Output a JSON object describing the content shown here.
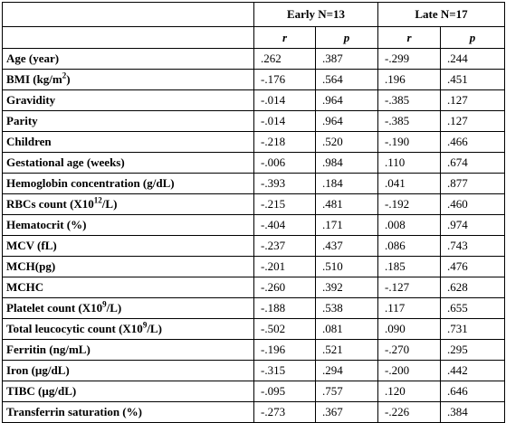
{
  "table": {
    "groups": [
      "Early N=13",
      "Late N=17"
    ],
    "stat_headers": [
      "r",
      "p",
      "r",
      "p"
    ],
    "rows": [
      {
        "label": "Age (year)",
        "values": [
          ".262",
          ".387",
          "-.299",
          ".244"
        ]
      },
      {
        "label_pre": "BMI (kg/m",
        "label_sup": "2",
        "label_post": ")",
        "values": [
          "-.176",
          ".564",
          ".196",
          ".451"
        ]
      },
      {
        "label": "Gravidity",
        "values": [
          "-.014",
          ".964",
          "-.385",
          ".127"
        ]
      },
      {
        "label": "Parity",
        "values": [
          "-.014",
          ".964",
          "-.385",
          ".127"
        ]
      },
      {
        "label": "Children",
        "values": [
          "-.218",
          ".520",
          "-.190",
          ".466"
        ]
      },
      {
        "label": "Gestational age (weeks)",
        "values": [
          "-.006",
          ".984",
          ".110",
          ".674"
        ]
      },
      {
        "label": "Hemoglobin concentration (g/dL)",
        "values": [
          "-.393",
          ".184",
          ".041",
          ".877"
        ]
      },
      {
        "label_pre": "RBCs count (X10",
        "label_sup": "12",
        "label_post": "/L)",
        "values": [
          "-.215",
          ".481",
          "-.192",
          ".460"
        ]
      },
      {
        "label": "Hematocrit (%)",
        "values": [
          "-.404",
          ".171",
          ".008",
          ".974"
        ]
      },
      {
        "label": "MCV (fL)",
        "values": [
          "-.237",
          ".437",
          ".086",
          ".743"
        ]
      },
      {
        "label": "MCH(pg)",
        "values": [
          "-.201",
          ".510",
          ".185",
          ".476"
        ]
      },
      {
        "label": "MCHC",
        "values": [
          "-.260",
          ".392",
          "-.127",
          ".628"
        ]
      },
      {
        "label_pre": "Platelet count (X10",
        "label_sup": "9",
        "label_post": "/L)",
        "values": [
          "-.188",
          ".538",
          ".117",
          ".655"
        ]
      },
      {
        "label_pre": "Total leucocytic count (X10",
        "label_sup": "9",
        "label_post": "/L)",
        "values": [
          "-.502",
          ".081",
          ".090",
          ".731"
        ]
      },
      {
        "label": "Ferritin (ng/mL)",
        "values": [
          "-.196",
          ".521",
          "-.270",
          ".295"
        ]
      },
      {
        "label": "Iron (µg/dL)",
        "values": [
          "-.315",
          ".294",
          "-.200",
          ".442"
        ]
      },
      {
        "label": "TIBC (µg/dL)",
        "values": [
          "-.095",
          ".757",
          ".120",
          ".646"
        ]
      },
      {
        "label": "Transferrin saturation (%)",
        "values": [
          "-.273",
          ".367",
          "-.226",
          ".384"
        ]
      }
    ]
  }
}
